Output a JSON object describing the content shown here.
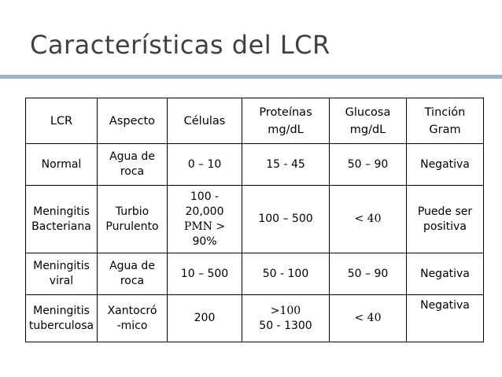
{
  "slide": {
    "title": "Características del LCR"
  },
  "table": {
    "headers": {
      "lcr": "LCR",
      "aspecto": "Aspecto",
      "celulas": "Células",
      "proteinas_1": "Proteínas",
      "proteinas_2": "mg/dL",
      "glucosa_1": "Glucosa",
      "glucosa_2": "mg/dL",
      "tincion_1": "Tinción",
      "tincion_2": "Gram"
    },
    "rows": [
      {
        "lcr": [
          "Normal"
        ],
        "aspecto": [
          "Agua de",
          "roca"
        ],
        "celulas": [
          "0 – 10"
        ],
        "proteinas": [
          "15 - 45"
        ],
        "glucosa": [
          "50 – 90"
        ],
        "tincion": [
          "Negativa"
        ]
      },
      {
        "lcr": [
          "Meningitis",
          "Bacteriana"
        ],
        "aspecto": [
          "Turbio",
          "Purulento"
        ],
        "celulas": [
          "100 -",
          "20,000",
          "PMN >",
          "90%"
        ],
        "proteinas": [
          "100 – 500"
        ],
        "glucosa": [
          "< 40"
        ],
        "tincion": [
          "Puede ser",
          "positiva"
        ]
      },
      {
        "lcr": [
          "Meningitis",
          "viral"
        ],
        "aspecto": [
          "Agua de",
          "roca"
        ],
        "celulas": [
          "10 – 500"
        ],
        "proteinas": [
          "50 - 100"
        ],
        "glucosa": [
          "50 – 90"
        ],
        "tincion": [
          "Negativa"
        ]
      },
      {
        "lcr": [
          "Meningitis",
          "tuberculosa"
        ],
        "aspecto": [
          "Xantocró",
          "-mico"
        ],
        "celulas": [
          "200"
        ],
        "proteinas": [
          ">100",
          "50 - 1300"
        ],
        "glucosa": [
          "< 40"
        ],
        "tincion": [
          "Negativa"
        ]
      }
    ]
  }
}
